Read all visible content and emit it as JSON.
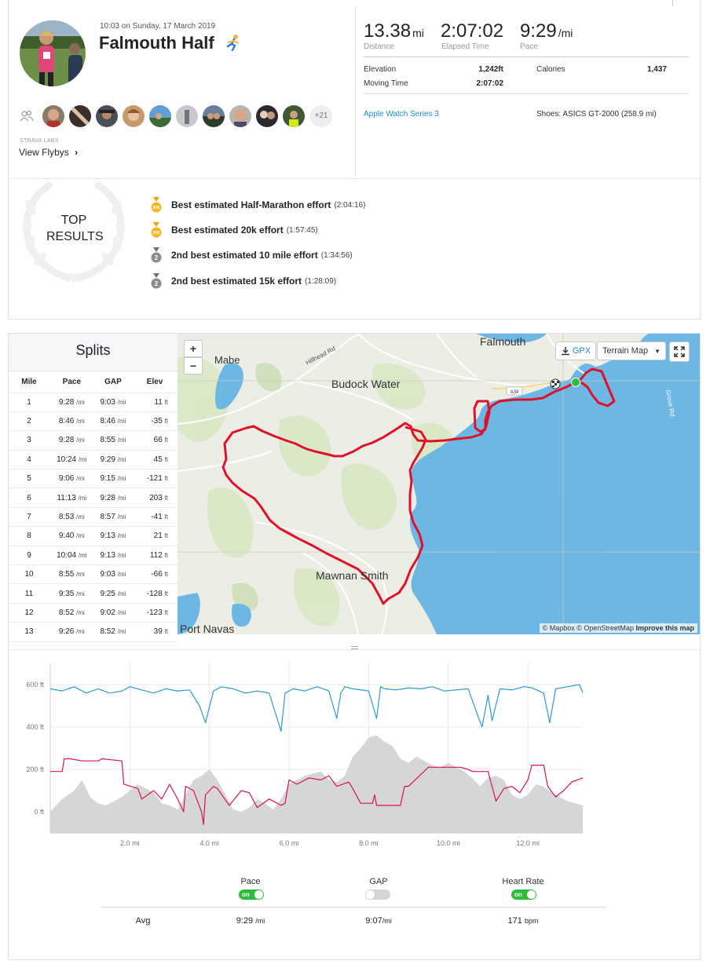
{
  "activity": {
    "datetime": "10:03 on Sunday, 17 March 2019",
    "title": "Falmouth Half",
    "title_emoji": "runner-icon",
    "more_athletes": "+21",
    "strava_labs": "STRAVA LABS",
    "view_flybys": "View Flybys",
    "view_flybys_chevron": "›"
  },
  "stats": {
    "distance": {
      "value": "13.38",
      "unit": "mi",
      "label": "Distance"
    },
    "elapsed": {
      "value": "2:07:02",
      "label": "Elapsed Time"
    },
    "pace": {
      "value": "9:29",
      "unit": "/mi",
      "label": "Pace"
    },
    "elevation": {
      "label": "Elevation",
      "value": "1,242ft"
    },
    "moving_time": {
      "label": "Moving Time",
      "value": "2:07:02"
    },
    "calories": {
      "label": "Calories",
      "value": "1,437"
    },
    "device": "Apple Watch Series 3",
    "shoes": "Shoes: ASICS GT-2000 (258.9 mi)"
  },
  "top_results": {
    "title_line1": "TOP",
    "title_line2": "RESULTS",
    "items": [
      {
        "medal": "pr",
        "medal_text": "PR",
        "label": "Best estimated Half-Marathon effort",
        "time": "(2:04:16)"
      },
      {
        "medal": "pr",
        "medal_text": "PR",
        "label": "Best estimated 20k effort",
        "time": "(1:57:45)"
      },
      {
        "medal": "silver",
        "medal_text": "2",
        "label": "2nd best estimated 10 mile effort",
        "time": "(1:34:56)"
      },
      {
        "medal": "silver",
        "medal_text": "2",
        "label": "2nd best estimated 15k effort",
        "time": "(1:28:09)"
      }
    ]
  },
  "splits": {
    "title": "Splits",
    "headers": [
      "Mile",
      "Pace",
      "GAP",
      "Elev"
    ],
    "pace_unit": "/mi",
    "elev_unit": "ft",
    "rows": [
      {
        "mile": "1",
        "pace": "9:28",
        "gap": "9:03",
        "elev": "11"
      },
      {
        "mile": "2",
        "pace": "8:46",
        "gap": "8:46",
        "elev": "-35"
      },
      {
        "mile": "3",
        "pace": "9:28",
        "gap": "8:55",
        "elev": "66"
      },
      {
        "mile": "4",
        "pace": "10:24",
        "gap": "9:29",
        "elev": "45"
      },
      {
        "mile": "5",
        "pace": "9:06",
        "gap": "9:15",
        "elev": "-121"
      },
      {
        "mile": "6",
        "pace": "11:13",
        "gap": "9:28",
        "elev": "203"
      },
      {
        "mile": "7",
        "pace": "8:53",
        "gap": "8:57",
        "elev": "-41"
      },
      {
        "mile": "8",
        "pace": "9:40",
        "gap": "9:13",
        "elev": "21"
      },
      {
        "mile": "9",
        "pace": "10:04",
        "gap": "9:13",
        "elev": "112"
      },
      {
        "mile": "10",
        "pace": "8:55",
        "gap": "9:03",
        "elev": "-66"
      },
      {
        "mile": "11",
        "pace": "9:35",
        "gap": "9:25",
        "elev": "-128"
      },
      {
        "mile": "12",
        "pace": "8:52",
        "gap": "9:02",
        "elev": "-123"
      },
      {
        "mile": "13",
        "pace": "9:26",
        "gap": "8:52",
        "elev": "39"
      }
    ]
  },
  "map": {
    "zoom_in": "+",
    "zoom_out": "−",
    "gpx": "GPX",
    "terrain": "Terrain Map",
    "credit_main": "© Mapbox © OpenStreetMap",
    "credit_link": "Improve this map",
    "labels": {
      "falmouth": "Falmouth",
      "mabe": "Mabe",
      "budock": "Budock Water",
      "mawnan": "Mawnan Smith",
      "port_navas": "Port Navas",
      "hillhead": "Hillhead Rd",
      "a39": "A39",
      "road_east": "Grove Rd"
    },
    "colors": {
      "route": "#e0102a",
      "sea": "#6cb7e3",
      "land": "#eceee6"
    }
  },
  "legend": {
    "pace": "Pace",
    "gap": "GAP",
    "heart_rate": "Heart Rate",
    "on": "on",
    "avg": "Avg",
    "avg_pace": "9:29",
    "avg_pace_unit": "/mi",
    "avg_gap": "9:07",
    "avg_gap_unit": "/mi",
    "avg_hr": "171",
    "avg_hr_unit": "bpm"
  },
  "chart_data": {
    "type": "area",
    "x_label_unit": "mi",
    "y_ticks": [
      "600 ft",
      "400 ft",
      "200 ft",
      "0 ft"
    ],
    "x_ticks": [
      "2.0 mi",
      "4.0 mi",
      "6.0 mi",
      "8.0 mi",
      "10.0 mi",
      "12.0 mi"
    ],
    "x_tick_values": [
      2,
      4,
      6,
      8,
      10,
      12
    ],
    "y_tick_values": [
      600,
      400,
      200,
      0
    ],
    "ylim": [
      -100,
      700
    ],
    "xlim": [
      0,
      13.38
    ],
    "series": [
      {
        "name": "Elevation",
        "color": "#d6d6d6",
        "x": [
          0,
          0.3,
          0.6,
          0.8,
          1.0,
          1.2,
          1.4,
          1.6,
          1.8,
          2.0,
          2.2,
          2.4,
          2.6,
          2.8,
          3.0,
          3.2,
          3.4,
          3.6,
          3.8,
          4.0,
          4.2,
          4.4,
          4.6,
          4.8,
          5.0,
          5.2,
          5.4,
          5.6,
          5.8,
          6.0,
          6.2,
          6.4,
          6.6,
          6.8,
          7.0,
          7.2,
          7.4,
          7.6,
          7.8,
          8.0,
          8.2,
          8.4,
          8.6,
          8.8,
          9.0,
          9.2,
          9.4,
          9.6,
          9.8,
          10.0,
          10.2,
          10.4,
          10.6,
          10.8,
          11.0,
          11.2,
          11.4,
          11.6,
          11.8,
          12.0,
          12.2,
          12.4,
          12.6,
          12.8,
          13.0,
          13.38
        ],
        "values": [
          0,
          60,
          100,
          150,
          70,
          40,
          30,
          50,
          70,
          100,
          130,
          110,
          90,
          40,
          30,
          10,
          80,
          150,
          170,
          200,
          150,
          80,
          10,
          0,
          20,
          60,
          40,
          10,
          60,
          130,
          150,
          170,
          180,
          190,
          150,
          140,
          170,
          260,
          300,
          350,
          360,
          330,
          310,
          250,
          230,
          260,
          240,
          220,
          210,
          230,
          210,
          190,
          160,
          120,
          160,
          170,
          150,
          80,
          60,
          80,
          130,
          120,
          90,
          70,
          50,
          30
        ]
      },
      {
        "name": "Pace",
        "color": "#2a9bd6",
        "x": [
          0,
          0.3,
          0.6,
          0.9,
          1.2,
          1.5,
          1.8,
          2.0,
          2.3,
          2.6,
          2.9,
          3.2,
          3.5,
          3.75,
          3.9,
          4.1,
          4.3,
          4.6,
          4.9,
          5.2,
          5.5,
          5.7,
          5.8,
          5.9,
          6.1,
          6.4,
          6.7,
          7.0,
          7.2,
          7.3,
          7.4,
          7.6,
          8.0,
          8.2,
          8.3,
          8.4,
          8.7,
          9.0,
          9.3,
          9.6,
          9.9,
          10.2,
          10.5,
          10.75,
          10.85,
          11.0,
          11.1,
          11.3,
          11.6,
          11.9,
          12.1,
          12.4,
          12.55,
          12.7,
          13.0,
          13.3,
          13.38
        ],
        "values": [
          580,
          570,
          590,
          560,
          580,
          560,
          570,
          590,
          575,
          560,
          580,
          570,
          575,
          500,
          420,
          570,
          590,
          580,
          560,
          570,
          560,
          440,
          380,
          560,
          580,
          570,
          590,
          570,
          440,
          560,
          590,
          580,
          570,
          440,
          590,
          580,
          575,
          585,
          580,
          590,
          570,
          575,
          580,
          450,
          400,
          550,
          430,
          580,
          575,
          590,
          585,
          560,
          420,
          580,
          590,
          600,
          560
        ]
      },
      {
        "name": "Heart Rate",
        "color": "#d9154b",
        "x": [
          0,
          0.3,
          0.35,
          0.5,
          0.8,
          1.2,
          1.3,
          1.8,
          1.85,
          2.2,
          2.3,
          2.6,
          2.8,
          3.0,
          3.2,
          3.35,
          3.4,
          3.6,
          3.8,
          3.85,
          3.9,
          4.1,
          4.2,
          4.5,
          4.8,
          5.0,
          5.2,
          5.5,
          5.8,
          5.9,
          6.0,
          6.2,
          6.5,
          6.8,
          7.0,
          7.2,
          7.5,
          7.6,
          7.8,
          8.1,
          8.15,
          8.2,
          8.4,
          8.8,
          8.9,
          9.0,
          9.5,
          10.0,
          10.3,
          10.5,
          10.6,
          11.0,
          11.2,
          11.4,
          11.6,
          11.8,
          12.0,
          12.1,
          12.4,
          12.5,
          12.7,
          12.9,
          13.1,
          13.38
        ],
        "values": [
          190,
          190,
          250,
          250,
          240,
          240,
          250,
          240,
          130,
          110,
          60,
          100,
          60,
          130,
          60,
          0,
          120,
          100,
          0,
          -60,
          80,
          120,
          110,
          30,
          100,
          90,
          20,
          60,
          30,
          40,
          150,
          130,
          160,
          150,
          170,
          120,
          140,
          110,
          40,
          40,
          80,
          30,
          30,
          30,
          120,
          120,
          210,
          210,
          210,
          200,
          190,
          190,
          50,
          110,
          120,
          90,
          150,
          220,
          220,
          120,
          70,
          100,
          140,
          160
        ]
      }
    ]
  }
}
